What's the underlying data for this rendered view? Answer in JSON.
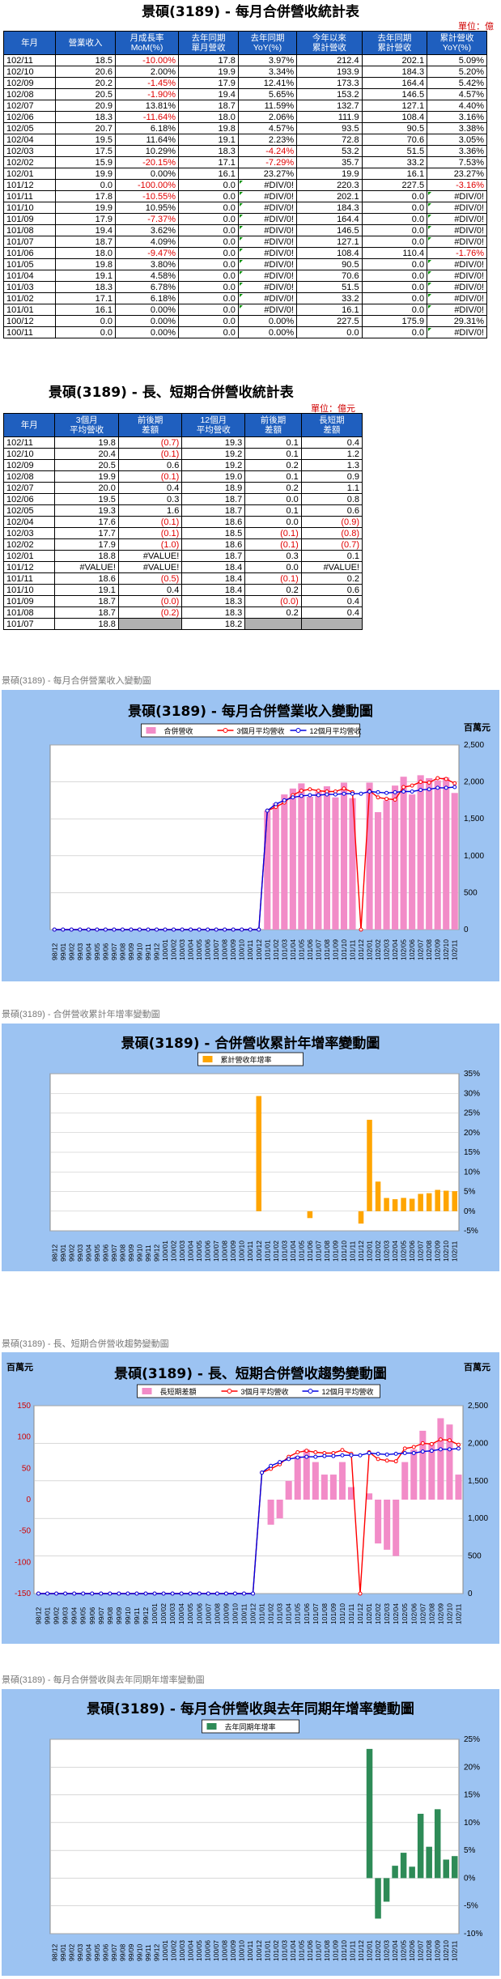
{
  "table1": {
    "title": "景碩(3189) - 每月合併營收統計表",
    "unit": "單位：億元",
    "headers": [
      "年月",
      "營業收入",
      "月成長率\nMoM(%)",
      "去年同期\n單月營收",
      "去年同期\nYoY(%)",
      "今年以來\n累計營收",
      "去年同期\n累計營收",
      "累計營收\nYoY(%)"
    ],
    "rows": [
      [
        "102/11",
        "18.5",
        "-10.00%",
        "17.8",
        "3.97%",
        "212.4",
        "202.1",
        "5.09%"
      ],
      [
        "102/10",
        "20.6",
        "2.00%",
        "19.9",
        "3.34%",
        "193.9",
        "184.3",
        "5.20%"
      ],
      [
        "102/09",
        "20.2",
        "-1.45%",
        "17.9",
        "12.41%",
        "173.3",
        "164.4",
        "5.42%"
      ],
      [
        "102/08",
        "20.5",
        "-1.90%",
        "19.4",
        "5.65%",
        "153.2",
        "146.5",
        "4.57%"
      ],
      [
        "102/07",
        "20.9",
        "13.81%",
        "18.7",
        "11.59%",
        "132.7",
        "127.1",
        "4.40%"
      ],
      [
        "102/06",
        "18.3",
        "-11.64%",
        "18.0",
        "2.06%",
        "111.9",
        "108.4",
        "3.16%"
      ],
      [
        "102/05",
        "20.7",
        "6.18%",
        "19.8",
        "4.57%",
        "93.5",
        "90.5",
        "3.38%"
      ],
      [
        "102/04",
        "19.5",
        "11.64%",
        "19.1",
        "2.23%",
        "72.8",
        "70.6",
        "3.05%"
      ],
      [
        "102/03",
        "17.5",
        "10.29%",
        "18.3",
        "-4.24%",
        "53.2",
        "51.5",
        "3.36%"
      ],
      [
        "102/02",
        "15.9",
        "-20.15%",
        "17.1",
        "-7.29%",
        "35.7",
        "33.2",
        "7.53%"
      ],
      [
        "102/01",
        "19.9",
        "0.00%",
        "16.1",
        "23.27%",
        "19.9",
        "16.1",
        "23.27%"
      ],
      [
        "101/12",
        "0.0",
        "-100.00%",
        "0.0",
        "#DIV/0!",
        "220.3",
        "227.5",
        "-3.16%"
      ],
      [
        "101/11",
        "17.8",
        "-10.55%",
        "0.0",
        "#DIV/0!",
        "202.1",
        "0.0",
        "#DIV/0!"
      ],
      [
        "101/10",
        "19.9",
        "10.95%",
        "0.0",
        "#DIV/0!",
        "184.3",
        "0.0",
        "#DIV/0!"
      ],
      [
        "101/09",
        "17.9",
        "-7.37%",
        "0.0",
        "#DIV/0!",
        "164.4",
        "0.0",
        "#DIV/0!"
      ],
      [
        "101/08",
        "19.4",
        "3.62%",
        "0.0",
        "#DIV/0!",
        "146.5",
        "0.0",
        "#DIV/0!"
      ],
      [
        "101/07",
        "18.7",
        "4.09%",
        "0.0",
        "#DIV/0!",
        "127.1",
        "0.0",
        "#DIV/0!"
      ],
      [
        "101/06",
        "18.0",
        "-9.47%",
        "0.0",
        "#DIV/0!",
        "108.4",
        "110.4",
        "-1.76%"
      ],
      [
        "101/05",
        "19.8",
        "3.80%",
        "0.0",
        "#DIV/0!",
        "90.5",
        "0.0",
        "#DIV/0!"
      ],
      [
        "101/04",
        "19.1",
        "4.58%",
        "0.0",
        "#DIV/0!",
        "70.6",
        "0.0",
        "#DIV/0!"
      ],
      [
        "101/03",
        "18.3",
        "6.78%",
        "0.0",
        "#DIV/0!",
        "51.5",
        "0.0",
        "#DIV/0!"
      ],
      [
        "101/02",
        "17.1",
        "6.18%",
        "0.0",
        "#DIV/0!",
        "33.2",
        "0.0",
        "#DIV/0!"
      ],
      [
        "101/01",
        "16.1",
        "0.00%",
        "0.0",
        "#DIV/0!",
        "16.1",
        "0.0",
        "#DIV/0!"
      ],
      [
        "100/12",
        "0.0",
        "0.00%",
        "0.0",
        "0.00%",
        "227.5",
        "175.9",
        "29.31%"
      ],
      [
        "100/11",
        "0.0",
        "0.00%",
        "0.0",
        "0.00%",
        "0.0",
        "0.0",
        "#DIV/0!"
      ]
    ]
  },
  "table2": {
    "title": "景碩(3189) - 長、短期合併營收統計表",
    "unit": "單位：億元",
    "headers": [
      "年月",
      "3個月\n平均營收",
      "前後期\n差額",
      "12個月\n平均營收",
      "前後期\n差額",
      "長短期\n差額"
    ],
    "rows": [
      [
        "102/11",
        "19.8",
        "(0.7)",
        "19.3",
        "0.1",
        "0.4"
      ],
      [
        "102/10",
        "20.4",
        "(0.1)",
        "19.2",
        "0.1",
        "1.2"
      ],
      [
        "102/09",
        "20.5",
        "0.6",
        "19.2",
        "0.2",
        "1.3"
      ],
      [
        "102/08",
        "19.9",
        "(0.1)",
        "19.0",
        "0.1",
        "0.9"
      ],
      [
        "102/07",
        "20.0",
        "0.4",
        "18.9",
        "0.2",
        "1.1"
      ],
      [
        "102/06",
        "19.5",
        "0.3",
        "18.7",
        "0.0",
        "0.8"
      ],
      [
        "102/05",
        "19.3",
        "1.6",
        "18.7",
        "0.1",
        "0.6"
      ],
      [
        "102/04",
        "17.6",
        "(0.1)",
        "18.6",
        "0.0",
        "(0.9)"
      ],
      [
        "102/03",
        "17.7",
        "(0.1)",
        "18.5",
        "(0.1)",
        "(0.8)"
      ],
      [
        "102/02",
        "17.9",
        "(1.0)",
        "18.6",
        "(0.1)",
        "(0.7)"
      ],
      [
        "102/01",
        "18.8",
        "#VALUE!",
        "18.7",
        "0.3",
        "0.1"
      ],
      [
        "101/12",
        "#VALUE!",
        "#VALUE!",
        "18.4",
        "0.0",
        "#VALUE!"
      ],
      [
        "101/11",
        "18.6",
        "(0.5)",
        "18.4",
        "(0.1)",
        "0.2"
      ],
      [
        "101/10",
        "19.1",
        "0.4",
        "18.4",
        "0.2",
        "0.6"
      ],
      [
        "101/09",
        "18.7",
        "(0.0)",
        "18.3",
        "(0.0)",
        "0.4"
      ],
      [
        "101/08",
        "18.7",
        "(0.2)",
        "18.3",
        "0.2",
        "0.4"
      ],
      [
        "101/07",
        "18.8",
        "",
        "18.2",
        "",
        ""
      ]
    ]
  },
  "chart_captions": [
    "景碩(3189) - 每月合併營業收入變動圖",
    "景碩(3189) - 合併營收累計年增率變動圖",
    "景碩(3189) - 長、短期合併營收趨勢變動圖",
    "景碩(3189) - 每月合併營收與去年同期年增率變動圖"
  ],
  "colors": {
    "header_blue": "#1f5fbf",
    "chart_bg": "#9cc3f2",
    "plot_bg": "#ffffff",
    "pink": "#f28cc8",
    "red": "#ff0000",
    "blue": "#0000e0",
    "orange": "#ffa500",
    "green": "#2e8b57",
    "negative_text": "#e00000"
  },
  "chart_data": [
    {
      "type": "bar",
      "title": "景碩(3189) - 每月合併營業收入變動圖",
      "unit_label": "百萬元",
      "legend": [
        "合併營收",
        "3個月平均營收",
        "12個月平均營收"
      ],
      "legend_position": "top",
      "x": [
        "98/12",
        "99/01",
        "99/02",
        "99/03",
        "99/04",
        "99/05",
        "99/06",
        "99/07",
        "99/08",
        "99/09",
        "99/10",
        "99/11",
        "99/12",
        "100/01",
        "100/02",
        "100/03",
        "100/04",
        "100/05",
        "100/06",
        "100/07",
        "100/08",
        "100/09",
        "100/10",
        "100/11",
        "100/12",
        "101/01",
        "101/02",
        "101/03",
        "101/04",
        "101/05",
        "101/06",
        "101/07",
        "101/08",
        "101/09",
        "101/10",
        "101/11",
        "101/12",
        "102/01",
        "102/02",
        "102/03",
        "102/04",
        "102/05",
        "102/06",
        "102/07",
        "102/08",
        "102/09",
        "102/10",
        "102/11"
      ],
      "x_tick_labels": [
        "98/12",
        "99/01",
        "99/02",
        "99/03",
        "99/04",
        "99/05",
        "99/06",
        "99/07",
        "99/08",
        "99/09",
        "99/10",
        "99/11",
        "99/12",
        "100/01",
        "100/02",
        "100/03",
        "100/04",
        "100/05",
        "100/06",
        "100/07",
        "100/08",
        "100/09",
        "100/10",
        "100/11",
        "100/12",
        "101/01",
        "101/02",
        "101/03",
        "101/04",
        "101/05",
        "101/06",
        "101/07",
        "101/08",
        "101/09",
        "101/10",
        "101/11",
        "101/12",
        "102/01",
        "102/02",
        "102/03",
        "102/04",
        "102/05",
        "102/06",
        "102/07",
        "102/08",
        "102/09",
        "102/10",
        "102/11"
      ],
      "series": [
        {
          "name": "合併營收",
          "kind": "bar",
          "values": [
            0,
            0,
            0,
            0,
            0,
            0,
            0,
            0,
            0,
            0,
            0,
            0,
            0,
            0,
            0,
            0,
            0,
            0,
            0,
            0,
            0,
            0,
            0,
            0,
            0,
            1610,
            1710,
            1830,
            1910,
            1980,
            1800,
            1870,
            1940,
            1790,
            1990,
            1780,
            0,
            1990,
            1590,
            1750,
            1950,
            2070,
            1830,
            2090,
            2050,
            2020,
            2060,
            1850
          ]
        },
        {
          "name": "3個月平均營收",
          "kind": "line",
          "values": [
            0,
            0,
            0,
            0,
            0,
            0,
            0,
            0,
            0,
            0,
            0,
            0,
            0,
            0,
            0,
            0,
            0,
            0,
            0,
            0,
            0,
            0,
            0,
            0,
            0,
            1610,
            1660,
            1720,
            1820,
            1880,
            1900,
            1880,
            1870,
            1870,
            1910,
            1860,
            0,
            1880,
            1790,
            1770,
            1760,
            1930,
            1950,
            2000,
            1990,
            2050,
            2040,
            1980
          ]
        },
        {
          "name": "12個月平均營收",
          "kind": "line",
          "values": [
            0,
            0,
            0,
            0,
            0,
            0,
            0,
            0,
            0,
            0,
            0,
            0,
            0,
            0,
            0,
            0,
            0,
            0,
            0,
            0,
            0,
            0,
            0,
            0,
            0,
            1610,
            1700,
            1750,
            1790,
            1810,
            1820,
            1820,
            1830,
            1830,
            1840,
            1840,
            1840,
            1870,
            1860,
            1850,
            1860,
            1870,
            1870,
            1890,
            1900,
            1920,
            1920,
            1930
          ]
        }
      ],
      "y_right_ticks": [
        "2,500",
        "2,000",
        "1,500",
        "1,000",
        "500",
        "0"
      ],
      "ylim": [
        0,
        2500
      ]
    },
    {
      "type": "bar",
      "title": "景碩(3189) - 合併營收累計年增率變動圖",
      "legend": [
        "累計營收年增率"
      ],
      "legend_position": "top",
      "x_tick_labels": [
        "98/12",
        "99/01",
        "99/02",
        "99/03",
        "99/04",
        "99/05",
        "99/06",
        "99/07",
        "99/08",
        "99/09",
        "99/10",
        "99/11",
        "99/12",
        "100/01",
        "100/02",
        "100/03",
        "100/04",
        "100/05",
        "100/06",
        "100/07",
        "100/08",
        "100/09",
        "100/10",
        "100/11",
        "100/12",
        "101/01",
        "101/02",
        "101/03",
        "101/04",
        "101/05",
        "101/06",
        "101/07",
        "101/08",
        "101/09",
        "101/10",
        "101/11",
        "101/12",
        "102/01",
        "102/02",
        "102/03",
        "102/04",
        "102/05",
        "102/06",
        "102/07",
        "102/08",
        "102/09",
        "102/10",
        "102/11"
      ],
      "values": [
        0,
        0,
        0,
        0,
        0,
        0,
        0,
        0,
        0,
        0,
        0,
        0,
        0,
        0,
        0,
        0,
        0,
        0,
        0,
        0,
        0,
        0,
        0,
        0,
        29.31,
        0,
        0,
        0,
        0,
        0,
        -1.76,
        0,
        0,
        0,
        0,
        0,
        -3.16,
        23.27,
        7.53,
        3.36,
        3.05,
        3.38,
        3.16,
        4.4,
        4.57,
        5.42,
        5.2,
        5.09
      ],
      "y_right_ticks": [
        "35%",
        "30%",
        "25%",
        "20%",
        "15%",
        "10%",
        "5%",
        "0%",
        "-5%"
      ],
      "ylim": [
        -5,
        35
      ]
    },
    {
      "type": "bar",
      "title": "景碩(3189) - 長、短期合併營收趨勢變動圖",
      "unit_label_left": "百萬元",
      "unit_label_right": "百萬元",
      "legend": [
        "長短期差額",
        "3個月平均營收",
        "12個月平均營收"
      ],
      "legend_position": "top",
      "x_tick_labels": [
        "98/12",
        "99/01",
        "99/02",
        "99/03",
        "99/04",
        "99/05",
        "99/06",
        "99/07",
        "99/08",
        "99/09",
        "99/10",
        "99/11",
        "99/12",
        "100/01",
        "100/02",
        "100/03",
        "100/04",
        "100/05",
        "100/06",
        "100/07",
        "100/08",
        "100/09",
        "100/10",
        "100/11",
        "100/12",
        "101/01",
        "101/02",
        "101/03",
        "101/04",
        "101/05",
        "101/06",
        "101/07",
        "101/08",
        "101/09",
        "101/10",
        "101/11",
        "101/12",
        "102/01",
        "102/02",
        "102/03",
        "102/04",
        "102/05",
        "102/06",
        "102/07",
        "102/08",
        "102/09",
        "102/10",
        "102/11"
      ],
      "series": [
        {
          "name": "長短期差額",
          "kind": "bar",
          "axis": "left",
          "values": [
            0,
            0,
            0,
            0,
            0,
            0,
            0,
            0,
            0,
            0,
            0,
            0,
            0,
            0,
            0,
            0,
            0,
            0,
            0,
            0,
            0,
            0,
            0,
            0,
            0,
            0,
            -40,
            -30,
            30,
            70,
            80,
            60,
            40,
            40,
            60,
            20,
            0,
            10,
            -70,
            -80,
            -90,
            60,
            80,
            110,
            90,
            130,
            120,
            40
          ]
        },
        {
          "name": "3個月平均營收",
          "kind": "line",
          "axis": "right",
          "values": [
            0,
            0,
            0,
            0,
            0,
            0,
            0,
            0,
            0,
            0,
            0,
            0,
            0,
            0,
            0,
            0,
            0,
            0,
            0,
            0,
            0,
            0,
            0,
            0,
            0,
            1610,
            1660,
            1720,
            1820,
            1880,
            1900,
            1880,
            1870,
            1870,
            1910,
            1860,
            0,
            1880,
            1790,
            1770,
            1760,
            1930,
            1950,
            2000,
            1990,
            2050,
            2040,
            1980
          ]
        },
        {
          "name": "12個月平均營收",
          "kind": "line",
          "axis": "right",
          "values": [
            0,
            0,
            0,
            0,
            0,
            0,
            0,
            0,
            0,
            0,
            0,
            0,
            0,
            0,
            0,
            0,
            0,
            0,
            0,
            0,
            0,
            0,
            0,
            0,
            0,
            1610,
            1700,
            1750,
            1790,
            1810,
            1820,
            1820,
            1830,
            1830,
            1840,
            1840,
            1840,
            1870,
            1860,
            1850,
            1860,
            1870,
            1870,
            1890,
            1900,
            1920,
            1920,
            1930
          ]
        }
      ],
      "y_left_ticks": [
        "150",
        "100",
        "50",
        "0",
        "-50",
        "-100",
        "-150"
      ],
      "y_right_ticks": [
        "2,500",
        "2,000",
        "1,500",
        "1,000",
        "500",
        "0"
      ],
      "ylim_left": [
        -150,
        150
      ],
      "ylim_right": [
        0,
        2500
      ]
    },
    {
      "type": "bar",
      "title": "景碩(3189) - 每月合併營收與去年同期年增率變動圖",
      "legend": [
        "去年同期年增率"
      ],
      "legend_position": "top",
      "x_tick_labels": [
        "98/12",
        "99/01",
        "99/02",
        "99/03",
        "99/04",
        "99/05",
        "99/06",
        "99/07",
        "99/08",
        "99/09",
        "99/10",
        "99/11",
        "99/12",
        "100/01",
        "100/02",
        "100/03",
        "100/04",
        "100/05",
        "100/06",
        "100/07",
        "100/08",
        "100/09",
        "100/10",
        "100/11",
        "100/12",
        "101/01",
        "101/02",
        "101/03",
        "101/04",
        "101/05",
        "101/06",
        "101/07",
        "101/08",
        "101/09",
        "101/10",
        "101/11",
        "101/12",
        "102/01",
        "102/02",
        "102/03",
        "102/04",
        "102/05",
        "102/06",
        "102/07",
        "102/08",
        "102/09",
        "102/10",
        "102/11"
      ],
      "values": [
        0,
        0,
        0,
        0,
        0,
        0,
        0,
        0,
        0,
        0,
        0,
        0,
        0,
        0,
        0,
        0,
        0,
        0,
        0,
        0,
        0,
        0,
        0,
        0,
        0,
        0,
        0,
        0,
        0,
        0,
        0,
        0,
        0,
        0,
        0,
        0,
        0,
        23.27,
        -7.29,
        -4.24,
        2.23,
        4.57,
        2.06,
        11.59,
        5.65,
        12.41,
        3.34,
        3.97
      ],
      "y_right_ticks": [
        "25%",
        "20%",
        "15%",
        "10%",
        "5%",
        "0%",
        "-5%",
        "-10%"
      ],
      "ylim": [
        -10,
        25
      ]
    }
  ]
}
